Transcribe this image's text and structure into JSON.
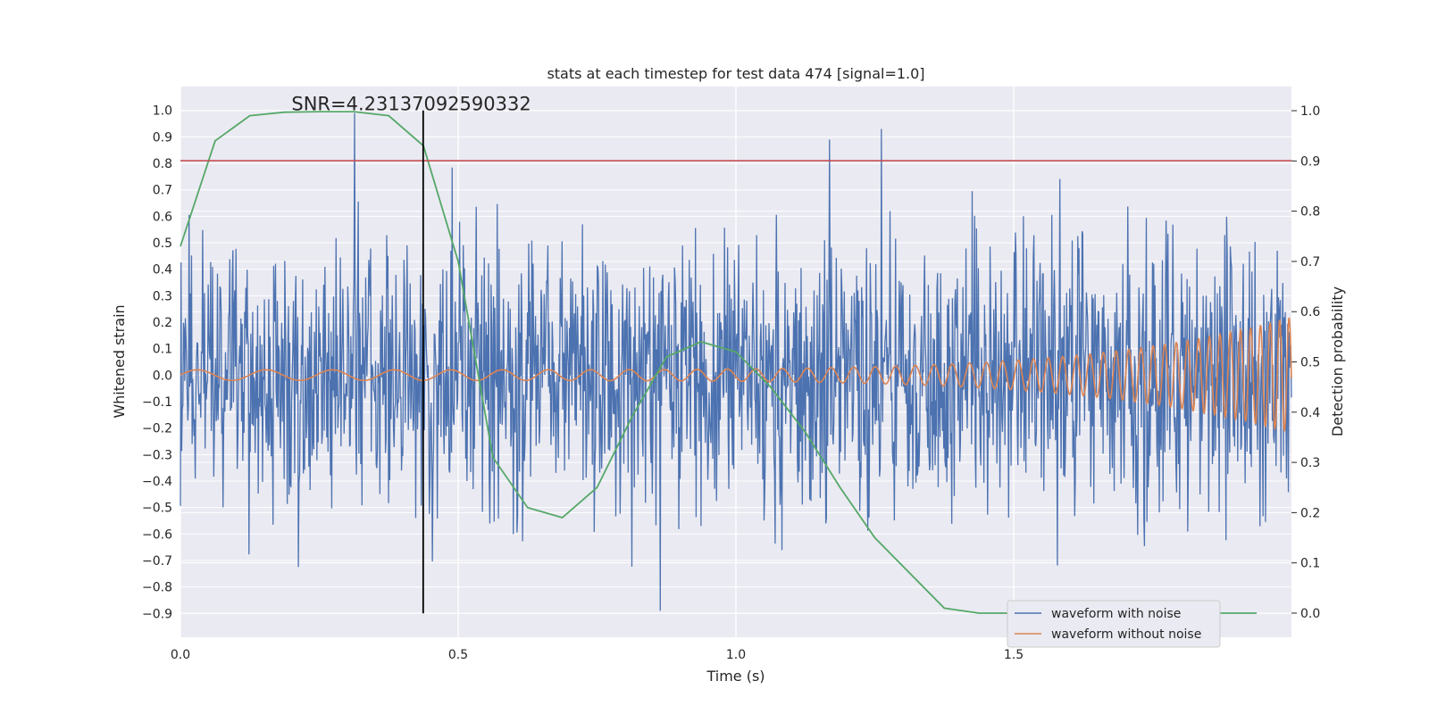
{
  "chart_data": {
    "type": "line",
    "title": "stats at each timestep for test data 474 [signal=1.0]",
    "xlabel": "Time (s)",
    "ylabel": "Whitened strain",
    "y2label": "Detection probability",
    "xlim": [
      0.0,
      2.0
    ],
    "ylim": [
      -0.99,
      1.09
    ],
    "y2lim": [
      -0.048,
      1.048
    ],
    "x_ticks": [
      0.0,
      0.5,
      1.0,
      1.5
    ],
    "x_tick_labels": [
      "0.0",
      "0.5",
      "1.0",
      "1.5"
    ],
    "y_ticks": [
      1.0,
      0.9,
      0.8,
      0.7,
      0.6,
      0.5,
      0.4,
      0.3,
      0.2,
      0.1,
      0.0,
      -0.1,
      -0.2,
      -0.3,
      -0.4,
      -0.5,
      -0.6,
      -0.7,
      -0.8,
      -0.9
    ],
    "y_tick_labels": [
      "1.0",
      "0.9",
      "0.8",
      "0.7",
      "0.6",
      "0.5",
      "0.4",
      "0.3",
      "0.2",
      "0.1",
      "0.0",
      "−0.1",
      "−0.2",
      "−0.3",
      "−0.4",
      "−0.5",
      "−0.6",
      "−0.7",
      "−0.8",
      "−0.9"
    ],
    "y2_ticks": [
      1.0,
      0.9,
      0.8,
      0.7,
      0.6,
      0.5,
      0.4,
      0.3,
      0.2,
      0.1,
      0.0
    ],
    "y2_tick_labels": [
      "1.0",
      "0.9",
      "0.8",
      "0.7",
      "0.6",
      "0.5",
      "0.4",
      "0.3",
      "0.2",
      "0.1",
      "0.0"
    ],
    "annotation": "SNR=4.23137092590332",
    "annotation_x": 0.2,
    "annotation_y": 1.0,
    "vertical_line_x": 0.437,
    "vertical_line_range": [
      -0.9,
      1.0
    ],
    "threshold_y": 0.81,
    "legend_position": "lower right",
    "series": [
      {
        "name": "waveform with noise",
        "color": "#4c72b0",
        "description": "noisy whitened strain, approx. uniform noise with std ~0.25, spikes to ~1.0 near t=0.31",
        "generator": {
          "n": 1800,
          "std": 0.25,
          "seed": 474
        }
      },
      {
        "name": "waveform without noise",
        "color": "#dd8452",
        "description": "chirp signal, amplitude ~0.02 growing to ~0.22 at t=2.0",
        "generator": {
          "start_amp": 0.02,
          "end_amp": 0.22,
          "start_freq": 8,
          "end_freq": 60
        }
      },
      {
        "name": "detection probability",
        "color": "#55a868",
        "axis": "right",
        "x": [
          0.0,
          0.0625,
          0.125,
          0.1875,
          0.25,
          0.3125,
          0.375,
          0.4375,
          0.5,
          0.5625,
          0.625,
          0.6875,
          0.75,
          0.8125,
          0.875,
          0.9375,
          1.0,
          1.0625,
          1.125,
          1.1875,
          1.25,
          1.3125,
          1.375,
          1.4375,
          1.5,
          1.5625,
          1.625,
          1.6875,
          1.75,
          1.8125,
          1.875,
          1.9375
        ],
        "values": [
          0.73,
          0.94,
          0.99,
          0.997,
          0.998,
          0.998,
          0.99,
          0.93,
          0.7,
          0.31,
          0.21,
          0.19,
          0.25,
          0.39,
          0.51,
          0.54,
          0.52,
          0.45,
          0.36,
          0.25,
          0.15,
          0.08,
          0.01,
          0.0,
          0.0,
          0.0,
          0.0,
          0.0,
          0.0,
          0.0,
          0.0,
          0.0
        ]
      }
    ]
  }
}
